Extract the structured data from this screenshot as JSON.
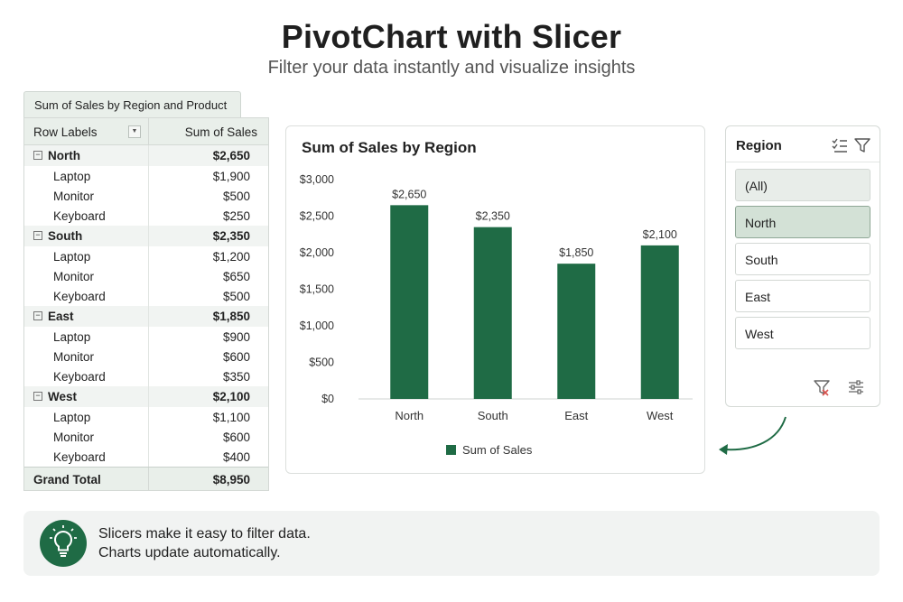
{
  "header": {
    "title": "PivotChart with Slicer",
    "subtitle": "Filter your data instantly and visualize insights"
  },
  "pivot": {
    "tab_label": "Sum of Sales by Region and Product",
    "col_row_labels": "Row Labels",
    "col_sum": "Sum of Sales",
    "groups": [
      {
        "name": "North",
        "total": "$2,650",
        "items": [
          {
            "label": "Laptop",
            "value": "$1,900"
          },
          {
            "label": "Monitor",
            "value": "$500"
          },
          {
            "label": "Keyboard",
            "value": "$250"
          }
        ]
      },
      {
        "name": "South",
        "total": "$2,350",
        "items": [
          {
            "label": "Laptop",
            "value": "$1,200"
          },
          {
            "label": "Monitor",
            "value": "$650"
          },
          {
            "label": "Keyboard",
            "value": "$500"
          }
        ]
      },
      {
        "name": "East",
        "total": "$1,850",
        "items": [
          {
            "label": "Laptop",
            "value": "$900"
          },
          {
            "label": "Monitor",
            "value": "$600"
          },
          {
            "label": "Keyboard",
            "value": "$350"
          }
        ]
      },
      {
        "name": "West",
        "total": "$2,100",
        "items": [
          {
            "label": "Laptop",
            "value": "$1,100"
          },
          {
            "label": "Monitor",
            "value": "$600"
          },
          {
            "label": "Keyboard",
            "value": "$400"
          }
        ]
      }
    ],
    "grand_total_label": "Grand Total",
    "grand_total_value": "$8,950"
  },
  "chart_data": {
    "type": "bar",
    "title": "Sum of Sales by Region",
    "categories": [
      "North",
      "South",
      "East",
      "West"
    ],
    "values": [
      2650,
      2350,
      1850,
      2100
    ],
    "data_labels": [
      "$2,650",
      "$2,350",
      "$1,850",
      "$2,100"
    ],
    "ylim": [
      0,
      3000
    ],
    "yticks": [
      0,
      500,
      1000,
      1500,
      2000,
      2500,
      3000
    ],
    "ytick_labels": [
      "$0",
      "$500",
      "$1,000",
      "$1,500",
      "$2,000",
      "$2,500",
      "$3,000"
    ],
    "series_name": "Sum of Sales",
    "legend": "bottom",
    "grid": false,
    "bar_color": "#1f6b45"
  },
  "slicer": {
    "title": "Region",
    "items": [
      {
        "label": "(All)",
        "state": "all"
      },
      {
        "label": "North",
        "state": "selected"
      },
      {
        "label": "South",
        "state": "normal"
      },
      {
        "label": "East",
        "state": "normal"
      },
      {
        "label": "West",
        "state": "normal"
      }
    ],
    "icons": [
      "multi-select-icon",
      "filter-icon",
      "clear-filter-icon",
      "slicer-settings-icon"
    ]
  },
  "tip": {
    "line1": "Slicers make it easy to filter data.",
    "line2": "Charts update automatically."
  },
  "colors": {
    "accent": "#1f6b45",
    "selected_bg": "#d3e1d6",
    "header_bg": "#e9efea"
  }
}
